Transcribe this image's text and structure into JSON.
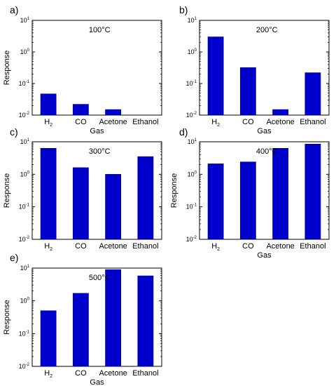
{
  "chart_data": [
    {
      "type": "bar",
      "panel_label": "a)",
      "annotation": "100°C",
      "categories": [
        "H2",
        "CO",
        "Acetone",
        "Ethanol"
      ],
      "values": [
        0.047,
        0.022,
        0.015,
        null
      ],
      "xlabel": "Gas",
      "ylabel": "Response",
      "yscale": "log",
      "ylim": [
        0.01,
        10
      ],
      "yticks": [
        0.01,
        0.1,
        1,
        10
      ],
      "legend": "none",
      "grid": false,
      "bar_color": "#0000cc"
    },
    {
      "type": "bar",
      "panel_label": "b)",
      "annotation": "200°C",
      "categories": [
        "H2",
        "CO",
        "Acetone",
        "Ethanol"
      ],
      "values": [
        3.0,
        0.32,
        0.015,
        0.22
      ],
      "xlabel": "Gas",
      "ylabel": "",
      "yscale": "log",
      "ylim": [
        0.01,
        10
      ],
      "yticks": [
        0.01,
        0.1,
        1,
        10
      ],
      "legend": "none",
      "grid": false,
      "bar_color": "#0000cc"
    },
    {
      "type": "bar",
      "panel_label": "c)",
      "annotation": "300°C",
      "categories": [
        "H2",
        "CO",
        "Acetone",
        "Ethanol"
      ],
      "values": [
        6.3,
        1.6,
        1.0,
        3.5
      ],
      "xlabel": "",
      "ylabel": "Response",
      "yscale": "log",
      "ylim": [
        0.01,
        10
      ],
      "yticks": [
        0.01,
        0.1,
        1,
        10
      ],
      "legend": "none",
      "grid": false,
      "bar_color": "#0000cc"
    },
    {
      "type": "bar",
      "panel_label": "d)",
      "annotation": "400°C",
      "categories": [
        "H2",
        "CO",
        "Acetone",
        "Ethanol"
      ],
      "values": [
        2.1,
        2.4,
        6.3,
        8.5
      ],
      "xlabel": "Gas",
      "ylabel": "Response",
      "yscale": "log",
      "ylim": [
        0.01,
        10
      ],
      "yticks": [
        0.01,
        0.1,
        1,
        10
      ],
      "legend": "none",
      "grid": false,
      "bar_color": "#0000cc"
    },
    {
      "type": "bar",
      "panel_label": "e)",
      "annotation": "500°C",
      "categories": [
        "H2",
        "CO",
        "Acetone",
        "Ethanol"
      ],
      "values": [
        0.5,
        1.7,
        9.0,
        5.8
      ],
      "xlabel": "Gas",
      "ylabel": "Response",
      "yscale": "log",
      "ylim": [
        0.01,
        10
      ],
      "yticks": [
        0.01,
        0.1,
        1,
        10
      ],
      "legend": "none",
      "grid": false,
      "bar_color": "#0000cc"
    }
  ]
}
